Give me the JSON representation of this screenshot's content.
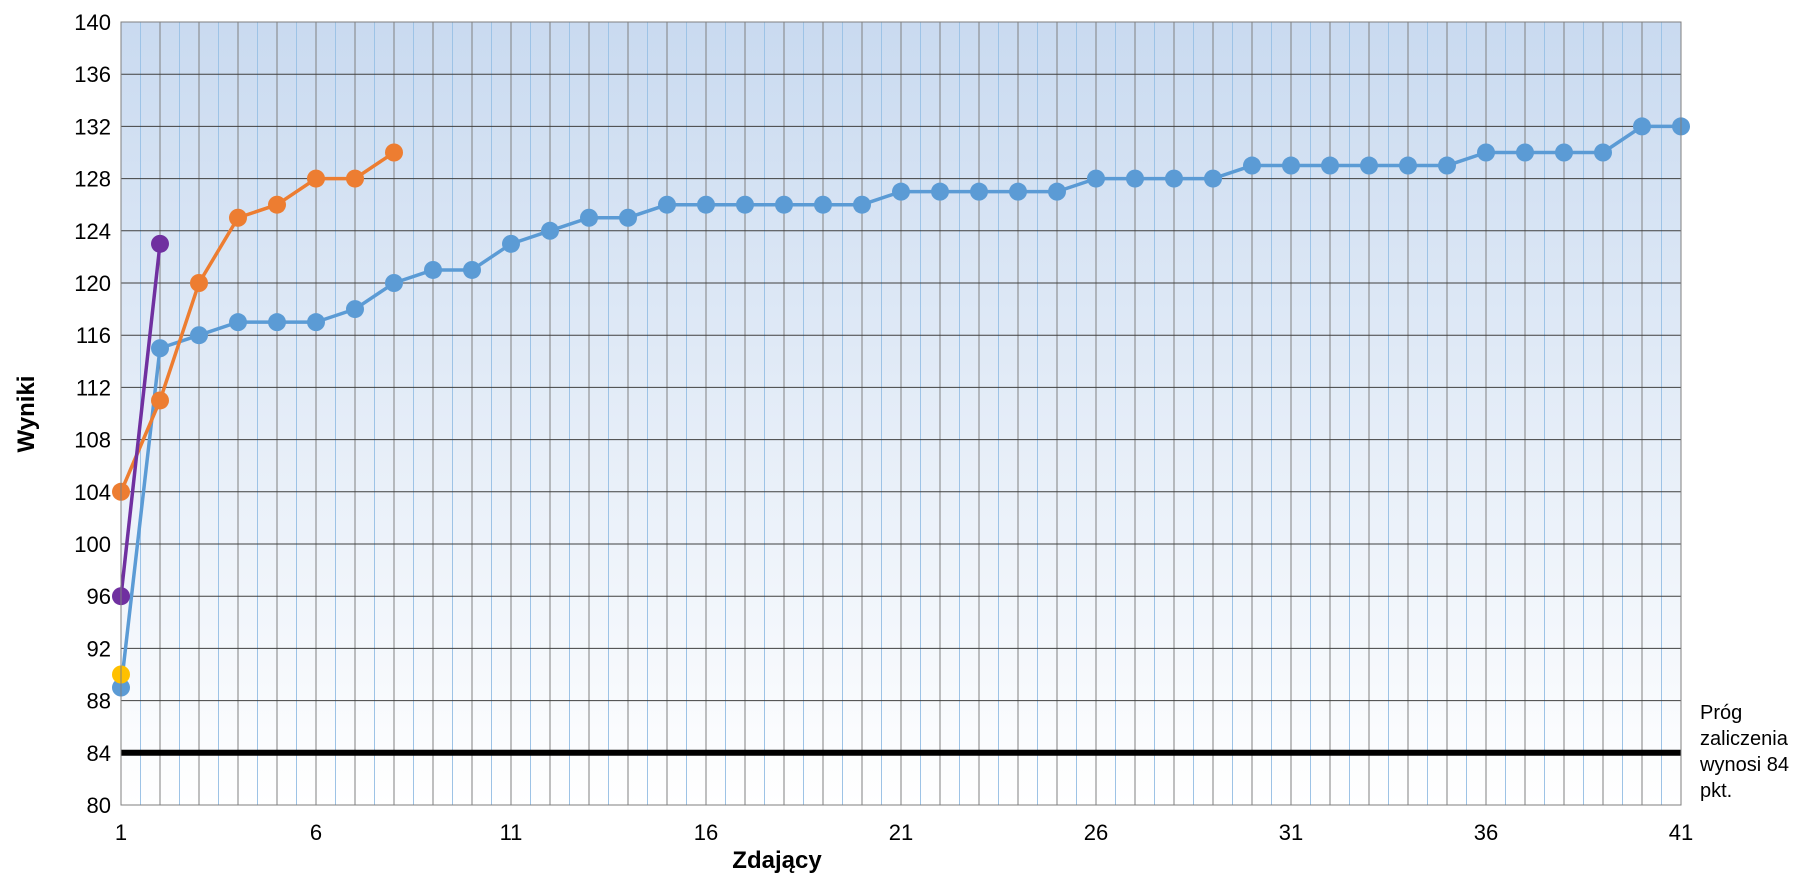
{
  "chart_data": {
    "type": "line",
    "xlabel": "Zdający",
    "ylabel": "Wyniki",
    "xlim": [
      1,
      41
    ],
    "ylim": [
      80,
      140
    ],
    "xticks": [
      1,
      6,
      11,
      16,
      21,
      26,
      31,
      36,
      41
    ],
    "yticks": [
      80,
      84,
      88,
      92,
      96,
      100,
      104,
      108,
      112,
      116,
      120,
      124,
      128,
      132,
      136,
      140
    ],
    "grid": true,
    "threshold": {
      "value": 84,
      "color": "#000000",
      "label": "Próg zaliczenia wynosi 84 pkt."
    },
    "series": [
      {
        "color": "#5b9bd5",
        "values": [
          89,
          115,
          116,
          117,
          117,
          117,
          118,
          120,
          121,
          121,
          123,
          124,
          125,
          125,
          126,
          126,
          126,
          126,
          126,
          126,
          127,
          127,
          127,
          127,
          127,
          128,
          128,
          128,
          128,
          129,
          129,
          129,
          129,
          129,
          129,
          130,
          130,
          130,
          130,
          132,
          132
        ]
      },
      {
        "color": "#ed7d31",
        "values": [
          104,
          111,
          120,
          125,
          126,
          128,
          128,
          130
        ]
      },
      {
        "color": "#7030a0",
        "values": [
          96,
          123
        ]
      },
      {
        "color": "#ffc000",
        "values": [
          90
        ]
      }
    ]
  }
}
